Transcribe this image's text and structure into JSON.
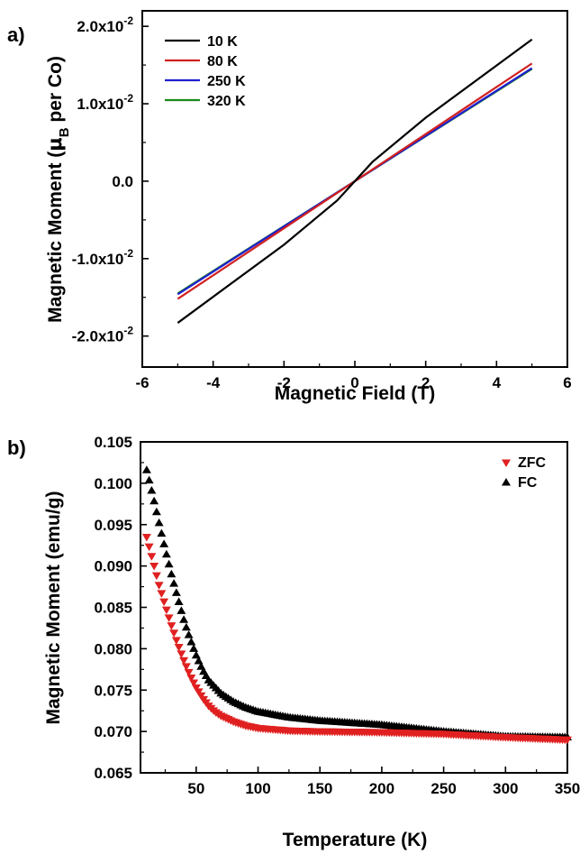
{
  "chart_data": [
    {
      "panel": "a)",
      "type": "line",
      "xlabel": "Magnetic Field (T)",
      "ylabel_main": "Magnetic Moment (",
      "ylabel_mu": "μ",
      "ylabel_sub": "B",
      "ylabel_tail": " per Co)",
      "xlim": [
        -6,
        6
      ],
      "ylim": [
        -0.024,
        0.022
      ],
      "x_ticks": [
        -6,
        -4,
        -2,
        0,
        2,
        4,
        6
      ],
      "x_tick_labels": [
        "-6",
        "-4",
        "-2",
        "0",
        "2",
        "4",
        "6"
      ],
      "y_ticks": [
        {
          "value": -0.02,
          "mant": "-2.0x10",
          "exp": "-2"
        },
        {
          "value": -0.01,
          "mant": "-1.0x10",
          "exp": "-2"
        },
        {
          "value": 0.0,
          "mant": "0.0",
          "exp": ""
        },
        {
          "value": 0.01,
          "mant": "1.0x10",
          "exp": "-2"
        },
        {
          "value": 0.02,
          "mant": "2.0x10",
          "exp": "-2"
        }
      ],
      "legend_position": "top-left",
      "series": [
        {
          "name": "10 K",
          "color": "#000000",
          "x": [
            -5,
            -2,
            -0.5,
            0,
            0.5,
            2,
            5
          ],
          "y": [
            -0.0183,
            -0.0082,
            -0.0025,
            0.0,
            0.0025,
            0.0082,
            0.0183
          ]
        },
        {
          "name": "80 K",
          "color": "#d02020",
          "x": [
            -5,
            0,
            5
          ],
          "y": [
            -0.0152,
            0.0,
            0.0152
          ]
        },
        {
          "name": "250 K",
          "color": "#1f1fcf",
          "x": [
            -5,
            0,
            5
          ],
          "y": [
            -0.0146,
            0.0,
            0.0146
          ]
        },
        {
          "name": "320 K",
          "color": "#1a8a1a",
          "x": [
            -5,
            0,
            5
          ],
          "y": [
            -0.0145,
            0.0,
            0.0145
          ]
        }
      ]
    },
    {
      "panel": "b)",
      "type": "scatter",
      "xlabel": "Temperature (K)",
      "ylabel": "Magnetic Moment (emu/g)",
      "xlim": [
        5,
        350
      ],
      "ylim": [
        0.065,
        0.105
      ],
      "x_ticks": [
        50,
        100,
        150,
        200,
        250,
        300,
        350
      ],
      "x_tick_labels": [
        "50",
        "100",
        "150",
        "200",
        "250",
        "300",
        "350"
      ],
      "y_ticks": [
        0.065,
        0.07,
        0.075,
        0.08,
        0.085,
        0.09,
        0.095,
        0.1,
        0.105
      ],
      "y_tick_labels": [
        "0.065",
        "0.070",
        "0.075",
        "0.080",
        "0.085",
        "0.090",
        "0.095",
        "0.100",
        "0.105"
      ],
      "legend_position": "top-right",
      "series": [
        {
          "name": "ZFC",
          "marker": "triangle-down",
          "color": "#e02020",
          "x": [
            10,
            15,
            20,
            25,
            30,
            35,
            40,
            45,
            50,
            55,
            60,
            65,
            70,
            80,
            90,
            100,
            125,
            150,
            200,
            250,
            300,
            350
          ],
          "y": [
            0.0935,
            0.0906,
            0.0877,
            0.0852,
            0.0828,
            0.0806,
            0.0786,
            0.0768,
            0.0753,
            0.0741,
            0.0731,
            0.0724,
            0.0719,
            0.0712,
            0.0707,
            0.0704,
            0.0701,
            0.07,
            0.0699,
            0.0697,
            0.0693,
            0.069
          ]
        },
        {
          "name": "FC",
          "marker": "triangle-up",
          "color": "#000000",
          "x": [
            10,
            15,
            20,
            25,
            30,
            35,
            40,
            45,
            50,
            55,
            60,
            70,
            80,
            90,
            100,
            125,
            150,
            200,
            250,
            300,
            350
          ],
          "y": [
            0.1016,
            0.0985,
            0.0952,
            0.092,
            0.089,
            0.0862,
            0.0835,
            0.0812,
            0.0792,
            0.0775,
            0.0762,
            0.0746,
            0.0736,
            0.0729,
            0.0724,
            0.0717,
            0.0713,
            0.0708,
            0.07,
            0.0694,
            0.0693
          ]
        }
      ]
    }
  ]
}
